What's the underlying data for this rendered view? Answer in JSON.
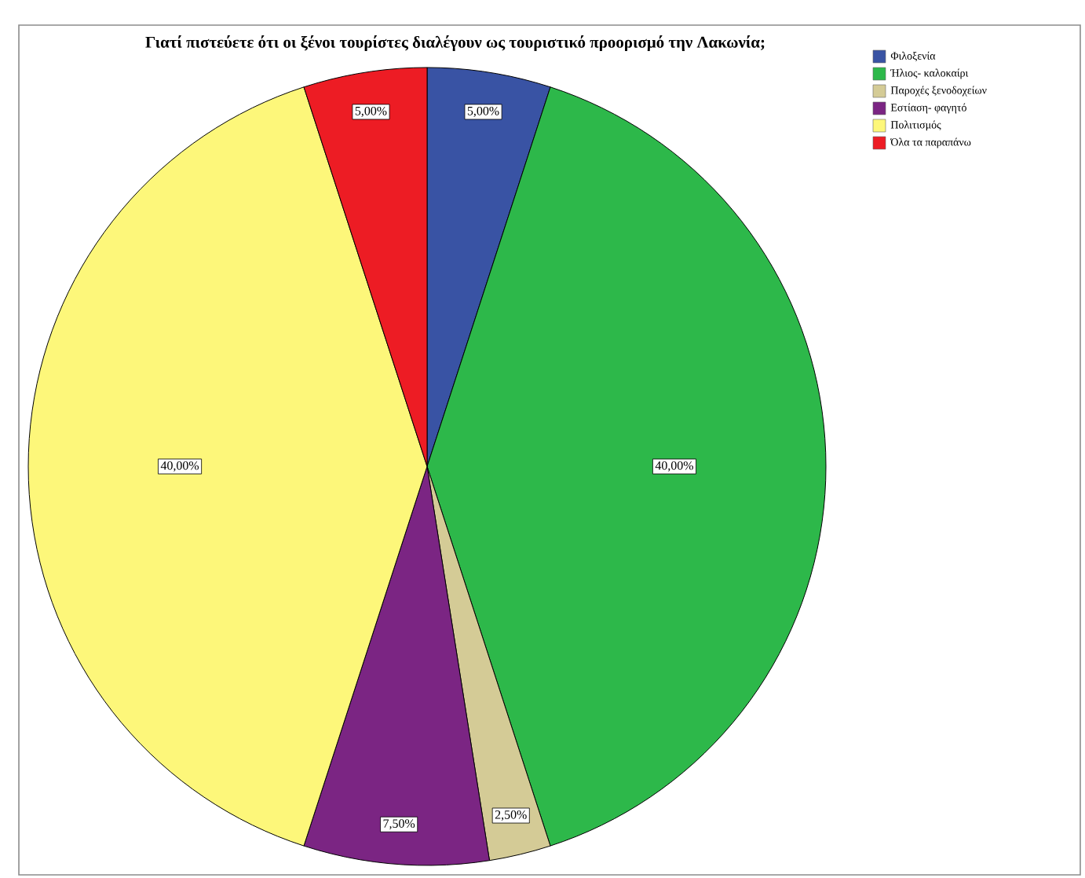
{
  "chart_data": {
    "type": "pie",
    "title": "Γιατί πιστεύετε ότι οι ξένοι τουρίστες διαλέγουν ως τουριστικό προορισμό την Λακωνία;",
    "categories": [
      "Φιλοξενία",
      "Ήλιος- καλοκαίρι",
      "Παροχές ξενοδοχείων",
      "Εστίαση- φαγητό",
      "Πολιτισμός",
      "Όλα τα παραπάνω"
    ],
    "values": [
      5,
      40,
      2.5,
      7.5,
      40,
      5
    ],
    "value_labels": [
      "5,00%",
      "40,00%",
      "2,50%",
      "7,50%",
      "40,00%",
      "5,00%"
    ],
    "colors": [
      "#3953a4",
      "#2db84a",
      "#d4cb96",
      "#7b2583",
      "#fdf77a",
      "#ed1c24"
    ],
    "legend": "top right"
  }
}
